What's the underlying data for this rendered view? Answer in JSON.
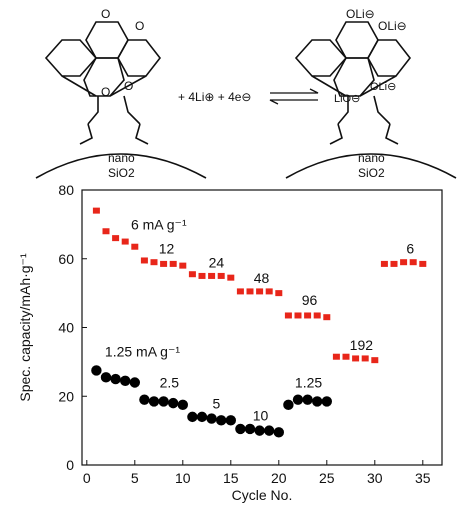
{
  "scheme": {
    "reaction_text": "+ 4Li⊕ + 4e⊖",
    "support_label_line1": "nano",
    "support_label_line2": "SiO2",
    "left_substituents": [
      "O",
      "O",
      "O",
      "O"
    ],
    "right_substituents": [
      "OLi⊖",
      "OLi⊖",
      "OLi⊖",
      "LiO⊖"
    ]
  },
  "chart_data": {
    "type": "scatter",
    "xlabel": "Cycle No.",
    "ylabel": "Spec. capacity/mAh·g⁻¹",
    "xlim": [
      -0.5,
      37
    ],
    "ylim": [
      0,
      80
    ],
    "xticks": [
      0,
      5,
      10,
      15,
      20,
      25,
      30,
      35
    ],
    "yticks": [
      0,
      20,
      40,
      60,
      80
    ],
    "grid": false,
    "series": [
      {
        "marker": "square",
        "color": "#e8261a",
        "x": [
          1,
          2,
          3,
          4,
          5,
          6,
          7,
          8,
          9,
          10,
          11,
          12,
          13,
          14,
          15,
          16,
          17,
          18,
          19,
          20,
          21,
          22,
          23,
          24,
          25,
          26,
          27,
          28,
          29,
          30,
          31,
          32,
          33,
          34,
          35
        ],
        "y": [
          74,
          68,
          66,
          65,
          63.5,
          59.5,
          59,
          58.5,
          58.5,
          58,
          55.5,
          55,
          55,
          55,
          54.5,
          50.5,
          50.5,
          50.5,
          50.5,
          50,
          43.5,
          43.5,
          43.5,
          43.5,
          43,
          31.5,
          31.5,
          31,
          31,
          30.5,
          58.5,
          58.5,
          59,
          59,
          58.5
        ]
      },
      {
        "marker": "circle",
        "color": "#000000",
        "x": [
          1,
          2,
          3,
          4,
          5,
          6,
          7,
          8,
          9,
          10,
          11,
          12,
          13,
          14,
          15,
          16,
          17,
          18,
          19,
          20,
          21,
          22,
          23,
          24,
          25
        ],
        "y": [
          27.5,
          25.5,
          25,
          24.5,
          24,
          19,
          18.5,
          18.5,
          18,
          17.5,
          14,
          14,
          13.5,
          13,
          13,
          10.5,
          10.5,
          10,
          10,
          9.5,
          17.5,
          19,
          19,
          18.5,
          18.5
        ]
      }
    ],
    "annotations": [
      {
        "text": "6 mA g⁻¹",
        "x": 7.5,
        "y": 68.5
      },
      {
        "text": "12",
        "x": 8.3,
        "y": 61.5
      },
      {
        "text": "24",
        "x": 13.5,
        "y": 57.5
      },
      {
        "text": "48",
        "x": 18.2,
        "y": 53
      },
      {
        "text": "96",
        "x": 23.2,
        "y": 46.5
      },
      {
        "text": "192",
        "x": 28.6,
        "y": 33.5
      },
      {
        "text": "6",
        "x": 33.7,
        "y": 61.5
      },
      {
        "text": "1.25 mA g⁻¹",
        "x": 5.8,
        "y": 31.5
      },
      {
        "text": "2.5",
        "x": 8.6,
        "y": 22.5
      },
      {
        "text": "5",
        "x": 13.5,
        "y": 16.5
      },
      {
        "text": "10",
        "x": 18.1,
        "y": 13
      },
      {
        "text": "1.25",
        "x": 23.1,
        "y": 22.5
      }
    ]
  }
}
